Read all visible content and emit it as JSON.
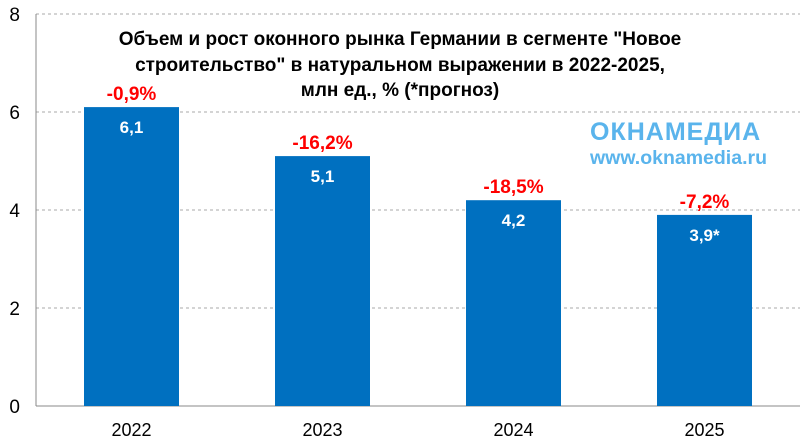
{
  "chart_data": {
    "type": "bar",
    "title": "Объем и рост оконного рынка Германии в сегменте \"Новое строительство\" в натуральном выражении в 2022-2025, млн ед., % (*прогноз)",
    "title_lines": [
      "Объем и рост оконного рынка Германии в сегменте \"Новое",
      "строительство\" в натуральном выражении в 2022-2025,",
      "млн ед., % (*прогноз)"
    ],
    "categories": [
      "2022",
      "2023",
      "2024",
      "2025"
    ],
    "values": [
      6.1,
      5.1,
      4.2,
      3.9
    ],
    "value_labels": [
      "6,1",
      "5,1",
      "4,2",
      "3,9*"
    ],
    "growth_labels": [
      "-0,9%",
      "-16,2%",
      "-18,5%",
      "-7,2%"
    ],
    "ylim": [
      0,
      8
    ],
    "yticks": [
      "0",
      "2",
      "4",
      "6",
      "8"
    ],
    "grid": true,
    "xlabel": "",
    "ylabel": "",
    "colors": {
      "bar": "#0070c0",
      "growth": "#ff0000",
      "logo": "#5ab4ec"
    }
  },
  "watermark": {
    "name": "ОКНАМЕДИА",
    "url": "www.oknamedia.ru"
  }
}
